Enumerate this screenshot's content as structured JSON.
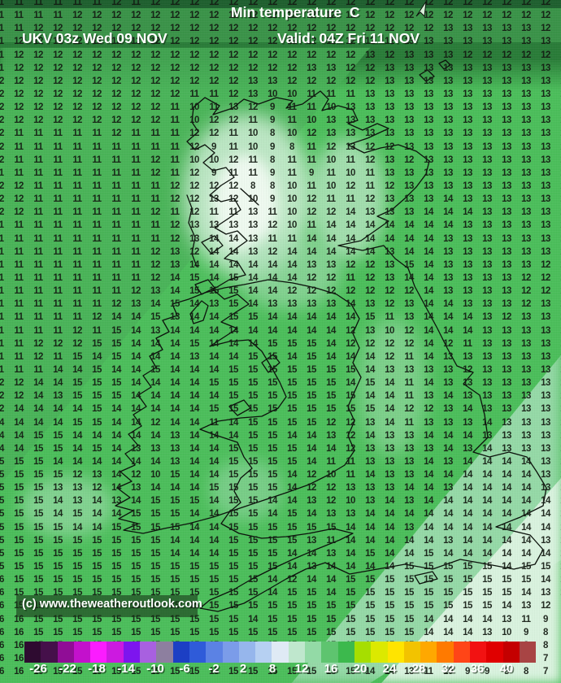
{
  "header": {
    "title": "Min temperature  C",
    "model_run": "UKV 03z Wed 09 NOV",
    "valid": "Valid: 04Z Fri 11 NOV"
  },
  "watermark": {
    "copyright": "(c) www.theweatheroutlook.com"
  },
  "chart_data": {
    "type": "heatmap",
    "title": "Min temperature  C",
    "unit": "C",
    "model_run": "UKV 03z Wed 09 NOV",
    "valid": "Valid: 04Z Fri 11 NOV",
    "grid_rows": [
      "11 11 11 11 11 11 12 11 12 12 12 12 12 12 12 12 12 12 12 12 12 12 12 12 12 12 12 12 12 11",
      "11 11 11 11 12 12 12 12 12 12 12 12 12 12 12 12 12 12 12 12 12 12 12 12 12 12 12 12 12 11",
      "11 11 12 12 12 12 12 12 12 12 12 12 12 12 12 12 12 12 12 12 12 12 12 13 13 13 13 13 12 11",
      "11 12 12 12 12 12 12 12 12 12 12 12 12 12 12 12 12 12 12 12 12 13 13 13 13 13 13 13 13 12",
      "11 12 12 12 12 12 12 12 12 12 12 12 12 12 12 12 12 12 12 13 12 13 13 13 12 12 12 12 12 13",
      "11 12 12 12 12 12 12 12 12 12 12 12 12 12 12 12 13 13 12 12 13 13 13 13 13 13 13 13 13 13",
      "12 12 12 12 12 12 12 12 12 12 12 12 12 13 13 12 12 12 12 12 13 13 13 13 13 13 13 13 13 13",
      "12 12 12 12 12 12 12 12 12 12 11 11 12 13 10 10 11 11 11 13 13 13 13 13 13 13 13 13 13 13",
      "12 12 12 12 12 12 12 12 12 11 10 11 13 12 9 11 11 10 13 13 13 13 13 13 13 13 13 13 13 13",
      "12 12 12 12 12 12 12 12 12 11 10 12 12 11 9 11 10 13 13 13 13 13 13 13 13 13 13 13 13 13",
      "12 11 11 11 11 11 12 11 11 11 12 12 11 10 8 10 12 13 13 13 13 13 13 13 13 13 13 13 13 13",
      "12 11 11 11 11 11 11 11 11 11 12 9 11 10 9 8 11 12 13 12 12 13 13 13 13 13 13 13 13 13",
      "12 11 11 11 11 11 11 11 12 11 10 10 12 11 8 11 11 10 11 12 13 12 13 13 13 13 13 13 13 13",
      "11 11 11 11 11 11 11 11 12 11 12 9 11 11 9 11 9 11 10 11 13 13 13 13 13 13 13 13 13 13",
      "12 12 11 11 11 11 11 11 11 12 12 12 12 8 8 10 11 10 12 11 12 13 13 13 13 13 13 13 13 13",
      "12 12 11 11 11 11 11 11 11 12 12 13 12 10 9 10 12 11 11 12 13 13 13 14 13 13 13 13 13 13",
      "12 12 11 11 11 11 11 11 12 11 12 11 11 13 11 10 12 12 14 13 13 13 14 14 14 13 13 13 13 13",
      "11 11 11 11 11 11 11 11 11 12 13 13 13 13 12 10 11 14 14 14 14 14 14 14 13 13 13 13 13 13",
      "11 11 11 11 11 11 11 11 11 12 13 14 14 13 11 11 14 14 14 14 14 14 14 13 13 13 13 13 13 12",
      "11 11 11 11 11 11 11 11 12 13 12 14 14 13 12 14 14 14 14 14 13 14 14 13 13 13 13 13 13 12",
      "11 11 11 11 11 11 11 11 12 13 14 14 14 14 14 14 13 13 12 12 13 15 14 13 13 13 13 13 12 12",
      "11 11 11 11 11 11 11 11 12 14 15 14 15 14 14 14 12 12 11 12 13 14 14 13 13 13 13 12 12 12",
      "11 11 11 11 11 11 11 12 13 14 15 15 15 14 14 12 12 12 12 12 12 12 14 13 13 13 13 12 12 13",
      "11 11 11 11 11 11 12 13 14 15 14 13 15 14 13 13 13 13 14 13 12 13 14 14 13 13 13 12 13 13",
      "11 11 11 11 11 12 14 14 15 13 14 14 15 15 14 14 14 14 14 15 11 13 14 14 14 13 12 13 13 13",
      "11 11 11 11 12 11 15 14 13 14 14 14 14 14 14 14 14 14 12 13 10 12 14 14 14 13 13 13 13 13",
      "11 11 12 12 12 15 15 14 14 14 15 14 14 14 15 15 15 14 12 12 12 12 14 12 11 13 13 13 13 13",
      "11 11 12 11 15 14 15 14 14 14 13 14 14 15 15 14 15 14 14 14 12 11 14 13 13 13 13 13 13 13",
      "11 11 11 14 14 15 14 14 15 14 14 14 15 15 15 15 15 15 15 14 13 13 13 13 12 13 13 13 13 14",
      "12 12 14 14 15 15 15 14 14 14 14 15 15 15 15 15 15 15 14 15 14 11 14 13 13 13 13 13 13 14",
      "12 12 14 13 15 15 15 14 14 14 14 14 15 15 15 15 15 15 15 14 14 11 13 14 13 13 13 13 13 13",
      "12 14 14 14 14 15 14 14 14 14 14 15 15 15 15 15 15 15 15 15 14 12 12 13 14 13 13 13 13 13",
      "14 14 14 14 15 15 14 14 12 14 14 11 14 15 15 15 15 12 12 13 14 11 13 13 13 14 13 13 13 13",
      "14 14 15 15 14 14 14 14 14 13 14 14 14 15 15 14 14 13 12 14 13 13 14 14 14 13 13 13 13 13",
      "14 14 15 15 14 15 14 13 13 13 14 14 15 15 15 15 14 14 12 13 13 13 13 14 13 14 13 13 13 14",
      "15 15 15 14 14 14 14 14 14 13 14 14 15 15 15 15 14 11 11 13 13 13 14 13 14 14 14 14 13 13",
      "15 15 15 15 12 13 14 12 10 15 14 14 15 15 15 14 12 10 11 14 13 13 14 14 14 14 14 14 13 13",
      "15 15 15 13 13 12 14 13 14 14 14 15 15 15 15 14 12 12 13 13 13 14 14 13 14 14 14 14 13 13",
      "15 15 15 14 13 14 13 14 15 15 15 14 15 15 14 14 13 12 10 13 14 13 14 14 14 14 14 14 14 15",
      "15 15 15 14 15 14 14 15 15 15 14 14 15 15 14 15 14 13 13 14 14 14 14 14 14 14 14 14 14 15",
      "15 15 15 15 14 14 15 15 15 15 14 14 15 15 15 15 15 15 14 14 14 13 14 14 14 14 14 14 14 14",
      "15 15 15 15 15 15 15 15 15 14 14 14 15 15 15 15 13 11 14 14 14 14 14 13 14 14 14 14 13 15",
      "15 15 15 15 15 15 15 15 15 14 14 14 15 15 15 14 14 13 14 15 14 14 15 14 14 14 14 14 14 15",
      "15 15 15 15 15 15 15 15 15 15 15 15 15 15 15 14 13 14 14 14 14 15 15 15 15 15 14 15 15 14",
      "16 15 15 15 15 15 15 15 15 15 15 15 15 15 14 12 14 14 15 15 15 15 15 15 15 15 15 15 14 13",
      "16 15 15 15 15 15 15 15 15 15 15 15 15 15 14 15 15 14 15 15 15 15 15 15 15 15 15 14 13 10",
      "16 15 15 15 15 15 15 15 15 15 15 15 15 15 15 15 15 15 15 15 15 15 15 15 15 15 14 13 12 9",
      "16 16 15 15 15 15 15 15 15 15 15 15 15 14 15 15 15 15 15 15 15 15 14 14 14 14 13 11 9 8",
      "16 16 15 15 15 15 15 15 15 15 15 15 15 15 15 15 15 15 15 15 15 15 14 14 14 13 10 9 8 8",
      "16 16 15 15 15 15 15 15 15 15 15 15 15 15 15 15 15 15 15 15 15 15 14 14 13 10 9 8 8 6",
      "16 16 15 15 15 15 15 15 15 15 15 15 15 15 15 15 15 15 15 14 14 14 12 11 10 9 9 8 7 7",
      "16 16 16 15 15 15 15 15 15 15 15 15 15 15 15 15 15 15 15 14 14 13 11 10 9 9 8 8 7 6"
    ],
    "colorbar": {
      "labels": [
        "-26",
        "-22",
        "-18",
        "-14",
        "-10",
        "-6",
        "-2",
        "2",
        "8",
        "12",
        "16",
        "20",
        "24",
        "28",
        "32",
        "36",
        "40"
      ],
      "colors": [
        "#2e0b30",
        "#45104a",
        "#900d96",
        "#c311cc",
        "#fb1cff",
        "#cc1ae0",
        "#7d15ee",
        "#a860e0",
        "#8d7f9f",
        "#1c3fc4",
        "#2f5bd9",
        "#5b82e4",
        "#7b9ce9",
        "#96b6ec",
        "#b6d0f2",
        "#dfeaf5",
        "#bfe7cd",
        "#93daa6",
        "#5ec46f",
        "#3cb94d",
        "#a6de00",
        "#dce900",
        "#ffe400",
        "#f2c300",
        "#ffa800",
        "#ff7a00",
        "#ff4517",
        "#f21212",
        "#e00000",
        "#c40000",
        "#a84444"
      ]
    }
  }
}
